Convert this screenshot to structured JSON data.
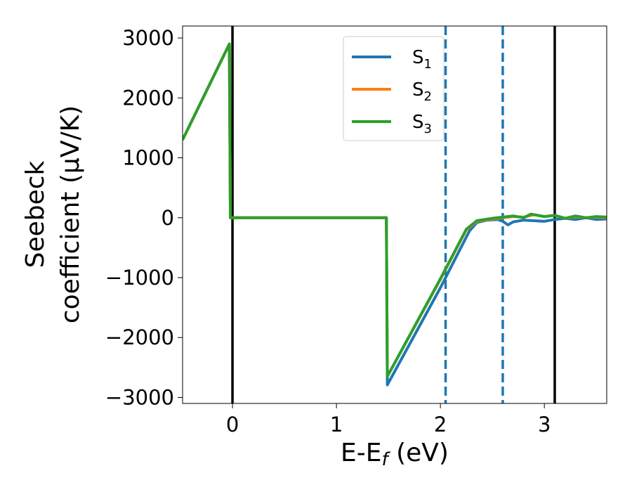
{
  "chart_data": {
    "type": "line",
    "xlabel": "E-E",
    "xlabel_sub": "f",
    "xlabel_unit": " (eV)",
    "ylabel_line1": "Seebeck",
    "ylabel_line2": "coefficient  (μV/K)",
    "xlim": [
      -0.48,
      3.6
    ],
    "ylim": [
      -3100,
      3200
    ],
    "x_ticks": [
      0,
      1,
      2,
      3
    ],
    "x_tick_labels": [
      "0",
      "1",
      "2",
      "3"
    ],
    "y_ticks": [
      -3000,
      -2000,
      -1000,
      0,
      1000,
      2000,
      3000
    ],
    "y_tick_labels": [
      "−3000",
      "−2000",
      "−1000",
      "0",
      "1000",
      "2000",
      "3000"
    ],
    "grid": false,
    "legend_position": "top-center",
    "vlines": [
      {
        "x": 0,
        "style": "solid",
        "color": "#000000"
      },
      {
        "x": 2.05,
        "style": "dashed",
        "color": "#1f77b4"
      },
      {
        "x": 2.6,
        "style": "dashed",
        "color": "#1f77b4"
      },
      {
        "x": 3.1,
        "style": "solid",
        "color": "#000000"
      }
    ],
    "series": [
      {
        "name": "S",
        "sub": "1",
        "color": "#1f77b4",
        "points": [
          [
            -0.48,
            1300
          ],
          [
            -0.03,
            2900
          ],
          [
            -0.02,
            0
          ],
          [
            1.48,
            0
          ],
          [
            1.49,
            -2790
          ],
          [
            2.0,
            -1170
          ],
          [
            2.28,
            -220
          ],
          [
            2.35,
            -80
          ],
          [
            2.45,
            -40
          ],
          [
            2.55,
            -30
          ],
          [
            2.6,
            -60
          ],
          [
            2.65,
            -120
          ],
          [
            2.7,
            -70
          ],
          [
            2.8,
            -40
          ],
          [
            2.9,
            -50
          ],
          [
            3.0,
            -60
          ],
          [
            3.1,
            -30
          ],
          [
            3.2,
            -10
          ],
          [
            3.3,
            -30
          ],
          [
            3.4,
            0
          ],
          [
            3.5,
            -30
          ],
          [
            3.6,
            -20
          ]
        ]
      },
      {
        "name": "S",
        "sub": "2",
        "color": "#ff7f0e",
        "points": [
          [
            -0.48,
            1300
          ],
          [
            -0.03,
            2900
          ],
          [
            -0.02,
            0
          ],
          [
            1.48,
            0
          ],
          [
            1.49,
            -2650
          ],
          [
            2.0,
            -1030
          ],
          [
            2.25,
            -200
          ],
          [
            2.35,
            -60
          ],
          [
            2.5,
            -20
          ],
          [
            2.6,
            0
          ],
          [
            2.7,
            20
          ],
          [
            2.8,
            10
          ],
          [
            2.9,
            50
          ],
          [
            3.0,
            20
          ],
          [
            3.1,
            40
          ],
          [
            3.2,
            -10
          ],
          [
            3.3,
            20
          ],
          [
            3.4,
            0
          ],
          [
            3.5,
            10
          ],
          [
            3.6,
            0
          ]
        ]
      },
      {
        "name": "S",
        "sub": "3",
        "color": "#2ca02c",
        "points": [
          [
            -0.48,
            1300
          ],
          [
            -0.03,
            2900
          ],
          [
            -0.02,
            0
          ],
          [
            1.48,
            0
          ],
          [
            1.49,
            -2650
          ],
          [
            2.0,
            -1020
          ],
          [
            2.25,
            -190
          ],
          [
            2.35,
            -50
          ],
          [
            2.5,
            -10
          ],
          [
            2.6,
            10
          ],
          [
            2.7,
            30
          ],
          [
            2.8,
            0
          ],
          [
            2.87,
            60
          ],
          [
            3.0,
            20
          ],
          [
            3.1,
            40
          ],
          [
            3.2,
            -10
          ],
          [
            3.3,
            30
          ],
          [
            3.4,
            0
          ],
          [
            3.5,
            20
          ],
          [
            3.6,
            10
          ]
        ]
      }
    ]
  }
}
